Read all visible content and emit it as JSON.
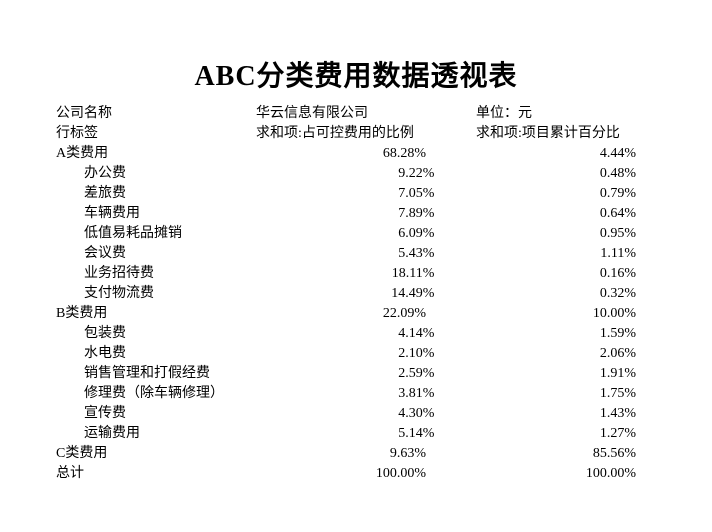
{
  "title": "ABC分类费用数据透视表",
  "meta": {
    "company_label": "公司名称",
    "company_value": "华云信息有限公司",
    "unit_label": "单位：元"
  },
  "headers": {
    "row_label": "行标签",
    "col1": "求和项:占可控费用的比例",
    "col2": "求和项:项目累计百分比"
  },
  "rows": [
    {
      "label": "A类费用",
      "indent": false,
      "v1": "68.28%",
      "v2": "4.44%"
    },
    {
      "label": "办公费",
      "indent": true,
      "v1": "9.22%",
      "v2": "0.48%"
    },
    {
      "label": "差旅费",
      "indent": true,
      "v1": "7.05%",
      "v2": "0.79%"
    },
    {
      "label": "车辆费用",
      "indent": true,
      "v1": "7.89%",
      "v2": "0.64%"
    },
    {
      "label": "低值易耗品摊销",
      "indent": true,
      "v1": "6.09%",
      "v2": "0.95%"
    },
    {
      "label": "会议费",
      "indent": true,
      "v1": "5.43%",
      "v2": "1.11%"
    },
    {
      "label": "业务招待费",
      "indent": true,
      "v1": "18.11%",
      "v2": "0.16%"
    },
    {
      "label": "支付物流费",
      "indent": true,
      "v1": "14.49%",
      "v2": "0.32%"
    },
    {
      "label": "B类费用",
      "indent": false,
      "v1": "22.09%",
      "v2": "10.00%"
    },
    {
      "label": "包装费",
      "indent": true,
      "v1": "4.14%",
      "v2": "1.59%"
    },
    {
      "label": "水电费",
      "indent": true,
      "v1": "2.10%",
      "v2": "2.06%"
    },
    {
      "label": "销售管理和打假经费",
      "indent": true,
      "v1": "2.59%",
      "v2": "1.91%"
    },
    {
      "label": "修理费（除车辆修理）",
      "indent": true,
      "v1": "3.81%",
      "v2": "1.75%"
    },
    {
      "label": "宣传费",
      "indent": true,
      "v1": "4.30%",
      "v2": "1.43%"
    },
    {
      "label": "运输费用",
      "indent": true,
      "v1": "5.14%",
      "v2": "1.27%"
    },
    {
      "label": "C类费用",
      "indent": false,
      "v1": "9.63%",
      "v2": "85.56%"
    },
    {
      "label": "总计",
      "indent": false,
      "v1": "100.00%",
      "v2": "100.00%"
    }
  ]
}
